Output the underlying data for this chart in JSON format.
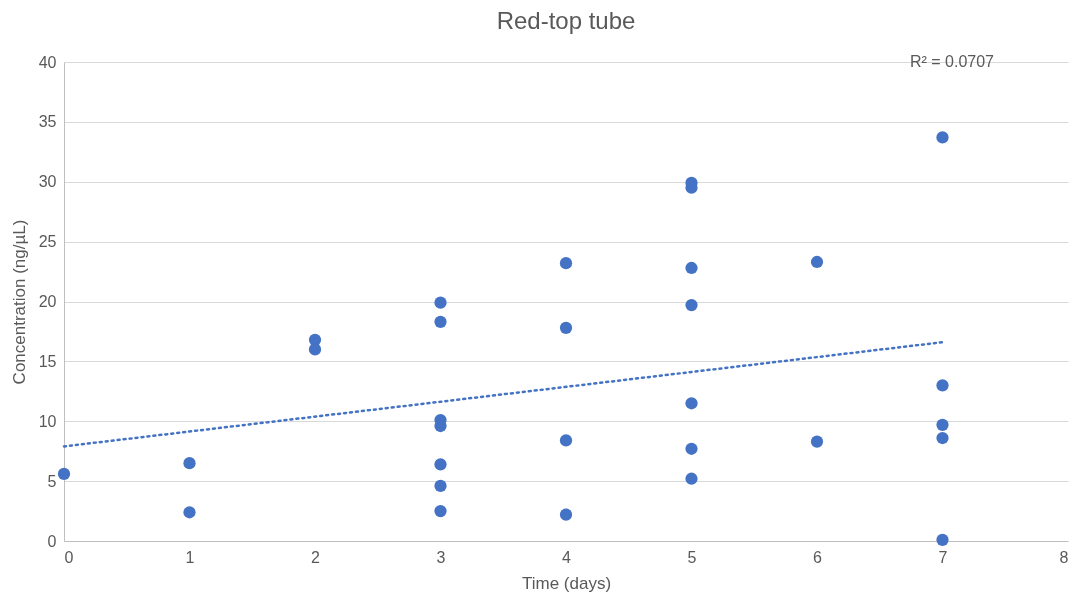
{
  "chart_data": {
    "type": "scatter",
    "title": "Red-top tube",
    "xlabel": "Time (days)",
    "ylabel": "Concentration (ng/µL)",
    "xlim": [
      0,
      8
    ],
    "xticks": [
      0,
      1,
      2,
      3,
      4,
      5,
      6,
      7,
      8
    ],
    "ylim": [
      0,
      40
    ],
    "yticks": [
      0,
      5,
      10,
      15,
      20,
      25,
      30,
      35,
      40
    ],
    "grid": "y",
    "marker": "circle",
    "annotations": [
      "R² = 0.0707"
    ],
    "series": [
      {
        "color": "#4472c4",
        "x": [
          0,
          1,
          1,
          2,
          2,
          3,
          3,
          3,
          3,
          3,
          3,
          3,
          4,
          4,
          4,
          4,
          5,
          5,
          5,
          5,
          5,
          5,
          5,
          6,
          6,
          7,
          7,
          7,
          7,
          7
        ],
        "values": [
          5.6,
          6.5,
          2.4,
          16.8,
          16.0,
          19.9,
          18.3,
          10.1,
          9.6,
          6.4,
          4.6,
          2.5,
          23.2,
          17.8,
          8.4,
          2.2,
          29.9,
          29.5,
          22.8,
          19.7,
          11.5,
          7.7,
          5.2,
          23.3,
          8.3,
          33.7,
          13.0,
          9.7,
          8.6,
          0.1
        ]
      },
      {
        "type": "line",
        "color": "#4472c4",
        "line_style": "dotted",
        "marker": "none",
        "x": [
          0,
          7
        ],
        "values": [
          7.9,
          16.6
        ]
      }
    ]
  }
}
